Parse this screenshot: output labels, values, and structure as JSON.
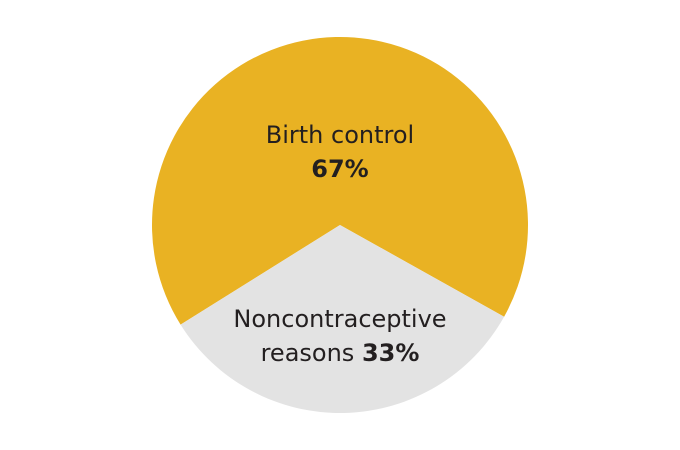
{
  "chart_data": {
    "type": "pie",
    "categories": [
      "Birth control",
      "Noncontraceptive reasons"
    ],
    "values": [
      67,
      33
    ],
    "value_labels": [
      "67%",
      "33%"
    ],
    "colors": [
      "#E9B223",
      "#E3E3E3"
    ]
  }
}
